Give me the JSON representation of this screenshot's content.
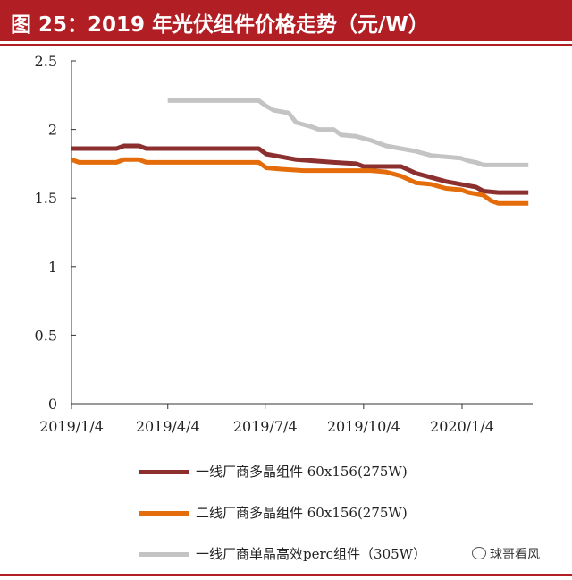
{
  "header": {
    "title": "图 25：2019 年光伏组件价格走势（元/W）"
  },
  "watermark": {
    "text": "球哥看风",
    "icon": "wechat-icon"
  },
  "colors": {
    "brand": "#b11f24",
    "series": [
      "#8b2f2f",
      "#e46c0a",
      "#c4c4c4"
    ]
  },
  "chart_data": {
    "type": "line",
    "title": "",
    "xlabel": "",
    "ylabel": "",
    "ylim": [
      0,
      2.5
    ],
    "yticks": [
      "2.5",
      "2",
      "1.5",
      "1",
      "0.5",
      "0"
    ],
    "ytick_values": [
      2.5,
      2,
      1.5,
      1,
      0.5,
      0
    ],
    "xlim": [
      "2019-01-04",
      "2020-03-10"
    ],
    "xticks": [
      {
        "label": "2019/1/4",
        "date": "2019-01-04"
      },
      {
        "label": "2019/4/4",
        "date": "2019-04-04"
      },
      {
        "label": "2019/7/4",
        "date": "2019-07-04"
      },
      {
        "label": "2019/10/4",
        "date": "2019-10-04"
      },
      {
        "label": "2020/1/4",
        "date": "2020-01-04"
      }
    ],
    "grid": false,
    "legend_position": "bottom",
    "series": [
      {
        "name": "一线厂商多晶组件 60x156(275W)",
        "points": [
          [
            "2019-01-04",
            1.86
          ],
          [
            "2019-02-15",
            1.86
          ],
          [
            "2019-02-22",
            1.88
          ],
          [
            "2019-03-08",
            1.88
          ],
          [
            "2019-03-15",
            1.86
          ],
          [
            "2019-06-28",
            1.86
          ],
          [
            "2019-07-05",
            1.82
          ],
          [
            "2019-07-19",
            1.8
          ],
          [
            "2019-08-02",
            1.78
          ],
          [
            "2019-09-06",
            1.76
          ],
          [
            "2019-09-27",
            1.75
          ],
          [
            "2019-10-04",
            1.73
          ],
          [
            "2019-11-08",
            1.73
          ],
          [
            "2019-11-22",
            1.68
          ],
          [
            "2019-12-06",
            1.65
          ],
          [
            "2019-12-20",
            1.62
          ],
          [
            "2020-01-03",
            1.6
          ],
          [
            "2020-01-17",
            1.58
          ],
          [
            "2020-01-24",
            1.55
          ],
          [
            "2020-02-07",
            1.54
          ],
          [
            "2020-03-06",
            1.54
          ]
        ]
      },
      {
        "name": "二线厂商多晶组件 60x156(275W)",
        "points": [
          [
            "2019-01-04",
            1.78
          ],
          [
            "2019-01-11",
            1.76
          ],
          [
            "2019-02-15",
            1.76
          ],
          [
            "2019-02-22",
            1.78
          ],
          [
            "2019-03-08",
            1.78
          ],
          [
            "2019-03-15",
            1.76
          ],
          [
            "2019-06-28",
            1.76
          ],
          [
            "2019-07-05",
            1.72
          ],
          [
            "2019-07-19",
            1.71
          ],
          [
            "2019-08-09",
            1.7
          ],
          [
            "2019-10-11",
            1.7
          ],
          [
            "2019-10-25",
            1.69
          ],
          [
            "2019-11-08",
            1.66
          ],
          [
            "2019-11-22",
            1.61
          ],
          [
            "2019-12-06",
            1.6
          ],
          [
            "2019-12-20",
            1.57
          ],
          [
            "2020-01-03",
            1.56
          ],
          [
            "2020-01-10",
            1.54
          ],
          [
            "2020-01-24",
            1.52
          ],
          [
            "2020-01-31",
            1.48
          ],
          [
            "2020-02-07",
            1.46
          ],
          [
            "2020-03-06",
            1.46
          ]
        ]
      },
      {
        "name": "一线厂商单晶高效perc组件（305W）",
        "points": [
          [
            "2019-04-04",
            2.21
          ],
          [
            "2019-06-28",
            2.21
          ],
          [
            "2019-07-05",
            2.17
          ],
          [
            "2019-07-12",
            2.14
          ],
          [
            "2019-07-26",
            2.12
          ],
          [
            "2019-08-02",
            2.05
          ],
          [
            "2019-08-16",
            2.02
          ],
          [
            "2019-08-23",
            2.0
          ],
          [
            "2019-09-06",
            2.0
          ],
          [
            "2019-09-13",
            1.96
          ],
          [
            "2019-09-27",
            1.95
          ],
          [
            "2019-10-11",
            1.92
          ],
          [
            "2019-10-25",
            1.88
          ],
          [
            "2019-11-08",
            1.86
          ],
          [
            "2019-11-22",
            1.84
          ],
          [
            "2019-12-06",
            1.81
          ],
          [
            "2019-12-20",
            1.8
          ],
          [
            "2020-01-03",
            1.79
          ],
          [
            "2020-01-10",
            1.77
          ],
          [
            "2020-01-17",
            1.76
          ],
          [
            "2020-01-24",
            1.74
          ],
          [
            "2020-03-06",
            1.74
          ]
        ]
      }
    ]
  }
}
